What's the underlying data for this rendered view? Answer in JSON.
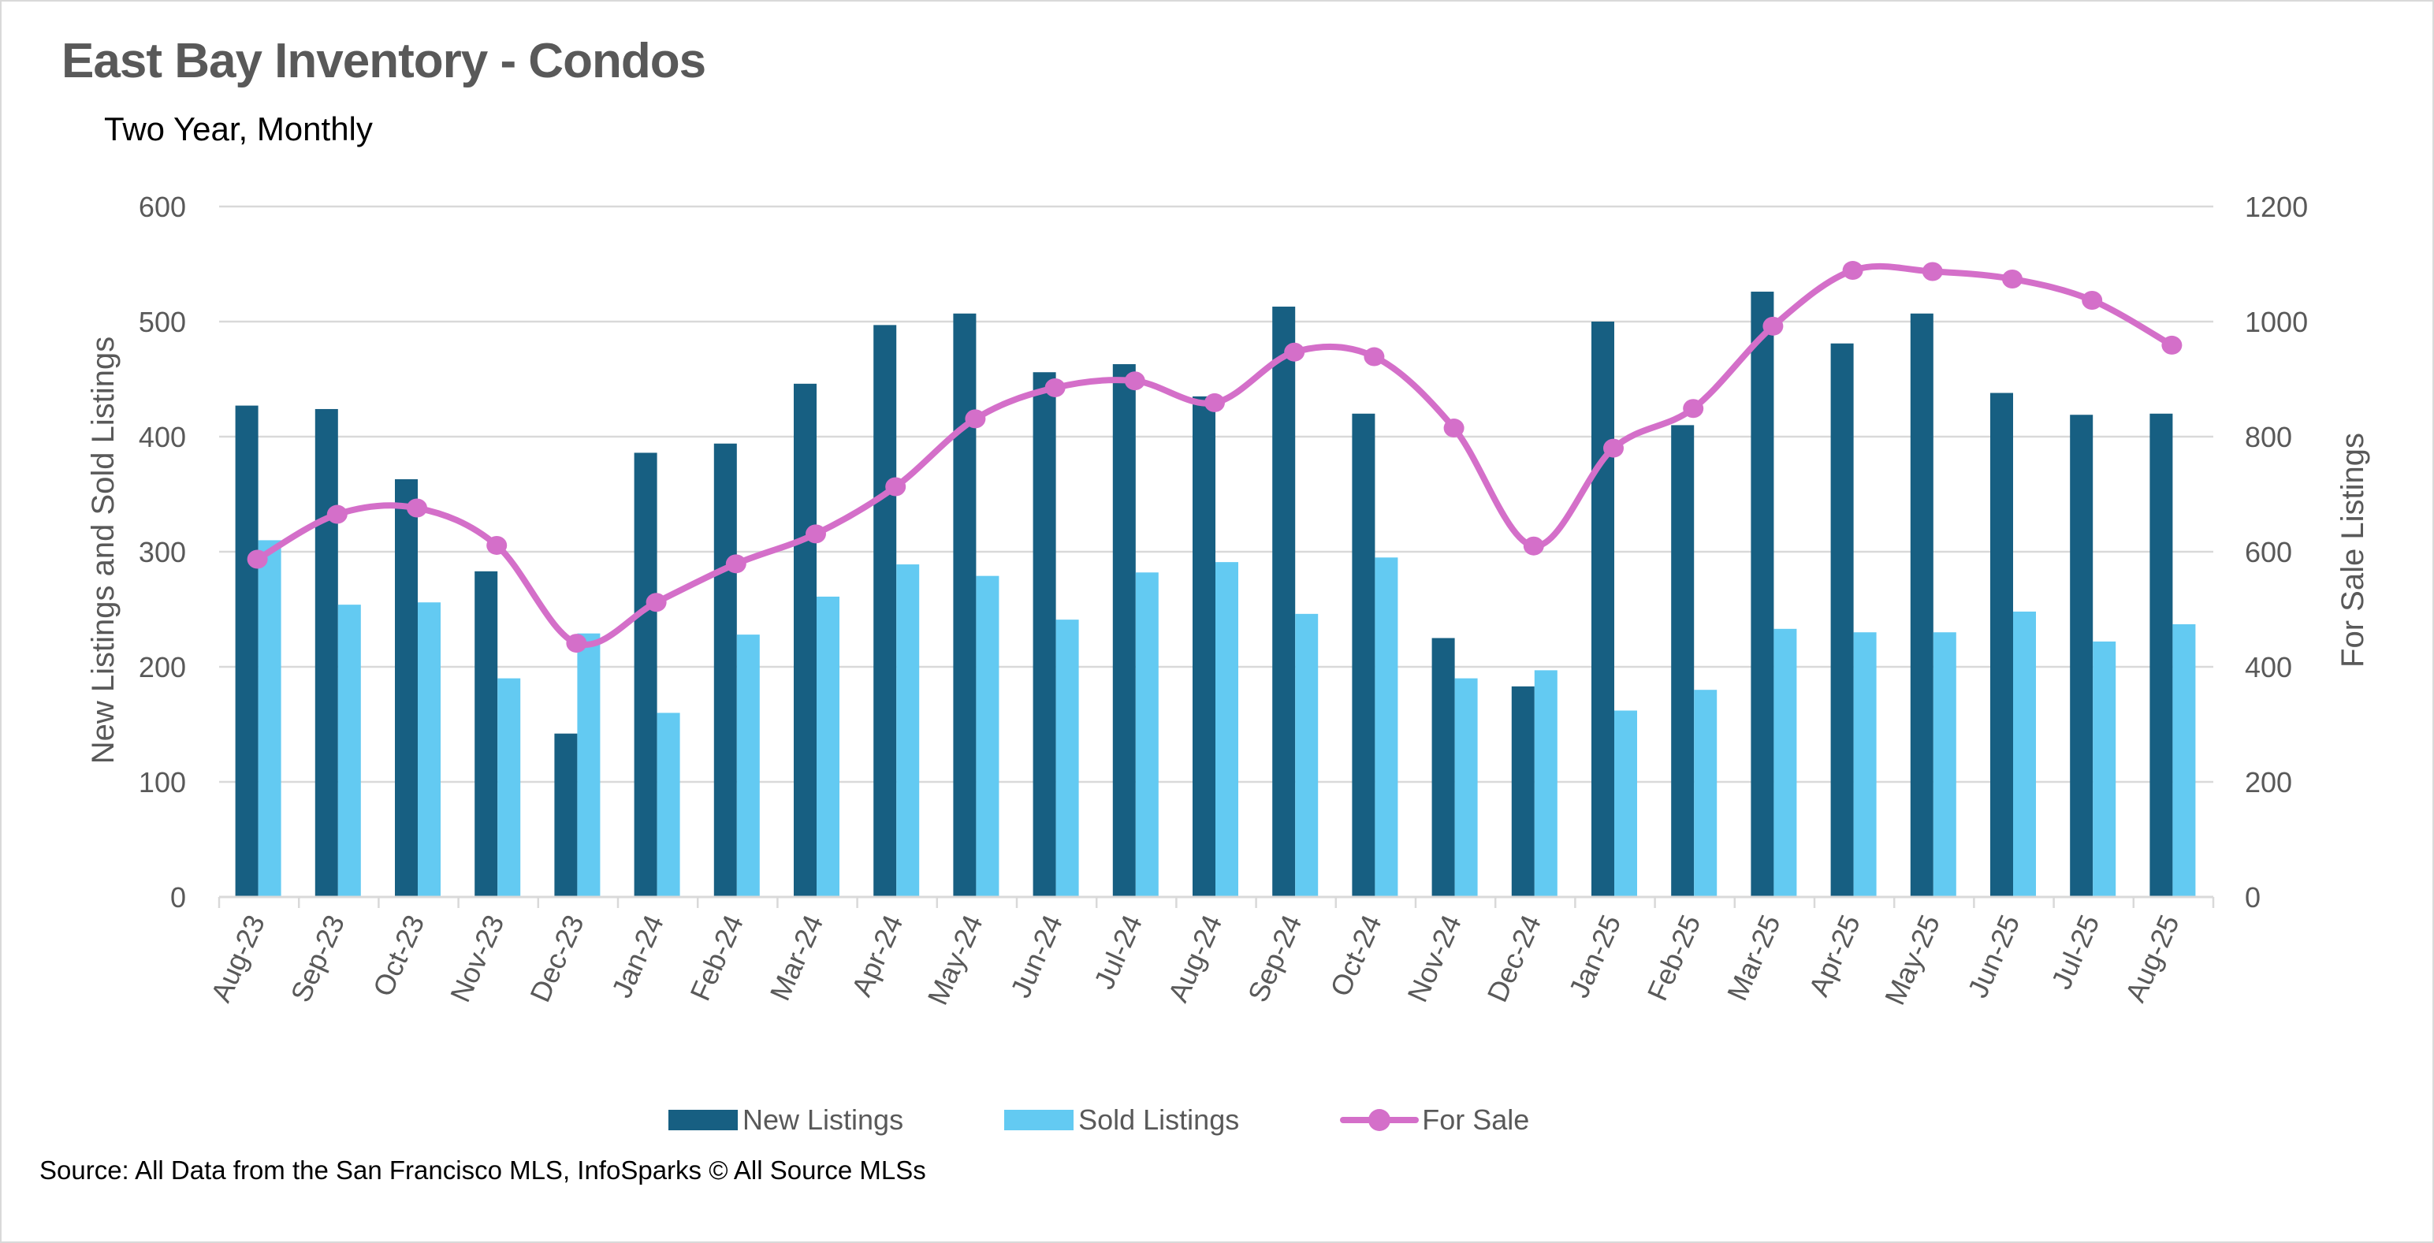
{
  "header": {
    "title": "East Bay Inventory - Condos",
    "subtitle": "Two Year, Monthly"
  },
  "footer": {
    "source": "Source: All Data from the San Francisco MLS, InfoSparks © All Source MLSs"
  },
  "colors": {
    "new_listings": "#175f82",
    "sold_listings": "#63caf2",
    "for_sale": "#d46fc9",
    "grid": "#d9d9d9",
    "text": "#595959"
  },
  "chart_data": {
    "type": "bar",
    "title": "East Bay Inventory - Condos",
    "subtitle": "Two Year, Monthly",
    "categories": [
      "Aug-23",
      "Sep-23",
      "Oct-23",
      "Nov-23",
      "Dec-23",
      "Jan-24",
      "Feb-24",
      "Mar-24",
      "Apr-24",
      "May-24",
      "Jun-24",
      "Jul-24",
      "Aug-24",
      "Sep-24",
      "Oct-24",
      "Nov-24",
      "Dec-24",
      "Jan-25",
      "Feb-25",
      "Mar-25",
      "Apr-25",
      "May-25",
      "Jun-25",
      "Jul-25",
      "Aug-25"
    ],
    "series": [
      {
        "name": "New Listings",
        "type": "bar",
        "axis": "left",
        "values": [
          427,
          424,
          363,
          283,
          142,
          386,
          394,
          446,
          497,
          507,
          456,
          463,
          435,
          513,
          420,
          225,
          183,
          500,
          410,
          526,
          481,
          507,
          438,
          419,
          420
        ]
      },
      {
        "name": "Sold Listings",
        "type": "bar",
        "axis": "left",
        "values": [
          310,
          254,
          256,
          190,
          229,
          160,
          228,
          261,
          289,
          279,
          241,
          282,
          291,
          246,
          295,
          190,
          197,
          162,
          180,
          233,
          230,
          230,
          248,
          222,
          237
        ]
      },
      {
        "name": "For Sale",
        "type": "line",
        "smooth": true,
        "markers": true,
        "axis": "right",
        "values": [
          587,
          665,
          676,
          611,
          441,
          512,
          579,
          631,
          713,
          831,
          885,
          897,
          859,
          947,
          939,
          815,
          610,
          780,
          849,
          992,
          1089,
          1087,
          1074,
          1037,
          959
        ]
      }
    ],
    "ylabel": "New Listings and Sold Listings",
    "ylim": [
      0,
      600
    ],
    "yticks": [
      "0",
      "100",
      "200",
      "300",
      "400",
      "500",
      "600"
    ],
    "y2label": "For Sale Listings",
    "y2lim": [
      0,
      1200
    ],
    "y2ticks": [
      "0",
      "200",
      "400",
      "600",
      "800",
      "1000",
      "1200"
    ],
    "xlabel": "",
    "grid": true,
    "legend": [
      "New Listings",
      "Sold Listings",
      "For Sale"
    ],
    "legend_position": "bottom"
  }
}
